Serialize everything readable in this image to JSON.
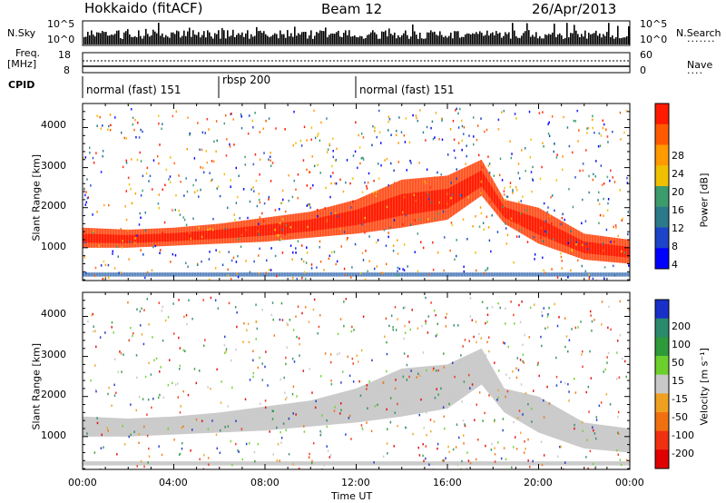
{
  "header": {
    "station": "Hokkaido (fitACF)",
    "beam": "Beam 12",
    "date": "26/Apr/2013"
  },
  "top_panels": {
    "nsky_label": "N.Sky",
    "nsky_ticks": [
      "10^5",
      "10^0"
    ],
    "nsearch_label": "N.Search",
    "nsearch_ticks": [
      "10^5",
      "10^0"
    ],
    "freq_label": "Freq.",
    "freq_unit": "[MHz]",
    "freq_ticks": [
      "18",
      "8"
    ],
    "nave_label": "Nave",
    "nave_ticks": [
      "60",
      "0"
    ],
    "cpid_label": "CPID",
    "cpid_segments": [
      {
        "label": "normal (fast) 151",
        "start_h": 0,
        "end_h": 6
      },
      {
        "label": "rbsp 200",
        "start_h": 6,
        "end_h": 12
      },
      {
        "label": "normal (fast) 151",
        "start_h": 12,
        "end_h": 24
      }
    ]
  },
  "axes": {
    "ylabel": "Slant Range [km]",
    "xlabel": "Time UT",
    "xticks": [
      "00:00",
      "04:00",
      "08:00",
      "12:00",
      "16:00",
      "20:00",
      "00:00"
    ],
    "yticks": [
      "1000",
      "2000",
      "3000",
      "4000"
    ]
  },
  "power_scale": {
    "label": "Power [dB]",
    "ticks": [
      "28",
      "24",
      "20",
      "16",
      "12",
      "8",
      "4"
    ],
    "colors": [
      "#ff1a00",
      "#ff5a00",
      "#ff9a00",
      "#f0c000",
      "#3c9c6c",
      "#2b7a8c",
      "#1c44c8",
      "#0000ff"
    ]
  },
  "velocity_scale": {
    "label": "Velocity [m s⁻¹]",
    "ticks": [
      "200",
      "100",
      "50",
      "15",
      "-15",
      "-50",
      "-100",
      "-200"
    ],
    "colors": [
      "#1830c8",
      "#2a8a6c",
      "#2e9a3a",
      "#6cd02c",
      "#c8c8c8",
      "#f0a020",
      "#f07010",
      "#f03010",
      "#e00000"
    ]
  },
  "chart_data": {
    "type": "heatmap",
    "x_range_hours": [
      0,
      24
    ],
    "y_range_km": [
      180,
      4600
    ],
    "power_bands": [
      {
        "name": "main_echo_band",
        "points": [
          [
            0.0,
            1000,
            1500
          ],
          [
            2.0,
            1000,
            1450
          ],
          [
            4.0,
            1050,
            1500
          ],
          [
            6.0,
            1100,
            1600
          ],
          [
            8.0,
            1150,
            1750
          ],
          [
            10.0,
            1250,
            1900
          ],
          [
            12.0,
            1350,
            2200
          ],
          [
            14.0,
            1500,
            2700
          ],
          [
            16.0,
            1700,
            2800
          ],
          [
            17.5,
            2300,
            3200
          ],
          [
            18.5,
            1600,
            2200
          ],
          [
            20.0,
            1100,
            2000
          ],
          [
            22.0,
            700,
            1350
          ],
          [
            24.0,
            600,
            1200
          ]
        ]
      },
      {
        "name": "near_range_band",
        "points": [
          [
            0.0,
            280,
            380
          ],
          [
            24.0,
            280,
            380
          ]
        ]
      }
    ],
    "power_top_colorbar_db": 30,
    "velocity_dominant": "-15 to 15 m/s (grey)",
    "x_unit": "hours UT",
    "y_unit": "km"
  }
}
